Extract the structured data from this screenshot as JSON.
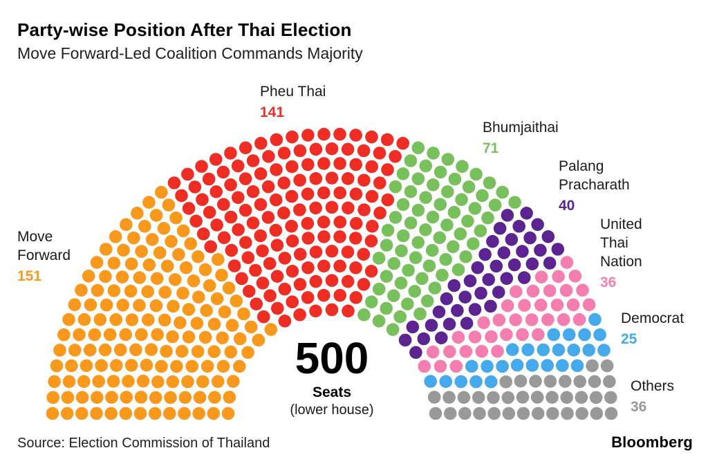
{
  "header": {
    "title": "Party-wise Position After Thai Election",
    "subtitle": "Move Forward-Led Coalition Commands Majority"
  },
  "center": {
    "total": "500",
    "seats_label": "Seats",
    "house_label": "(lower house)"
  },
  "labels": {
    "move_forward": {
      "name": "Move Forward",
      "value": "151"
    },
    "pheu_thai": {
      "name": "Pheu Thai",
      "value": "141"
    },
    "bhumjaithai": {
      "name": "Bhumjaithai",
      "value": "71"
    },
    "palang": {
      "name": "Palang Pracharath",
      "value": "40"
    },
    "utn": {
      "name": "United Thai Nation",
      "value": "36"
    },
    "democrat": {
      "name": "Democrat",
      "value": "25"
    },
    "others": {
      "name": "Others",
      "value": "36"
    }
  },
  "footer": {
    "source": "Source: Election Commission of Thailand",
    "brand": "Bloomberg"
  },
  "chart_data": {
    "type": "pie",
    "chart_style": "parliament-hemicycle-dots",
    "title": "Party-wise Position After Thai Election",
    "subtitle": "Move Forward-Led Coalition Commands Majority",
    "total_seats": 500,
    "rows": 13,
    "center_annotation": {
      "total": 500,
      "unit": "Seats",
      "note": "(lower house)"
    },
    "series": [
      {
        "name": "Move Forward",
        "value": 151,
        "color": "#F8991D"
      },
      {
        "name": "Pheu Thai",
        "value": 141,
        "color": "#EE2E24"
      },
      {
        "name": "Bhumjaithai",
        "value": 71,
        "color": "#77C05B"
      },
      {
        "name": "Palang Pracharath",
        "value": 40,
        "color": "#5C2490"
      },
      {
        "name": "United Thai Nation",
        "value": 36,
        "color": "#F57EB0"
      },
      {
        "name": "Democrat",
        "value": 25,
        "color": "#45A9EC"
      },
      {
        "name": "Others",
        "value": 36,
        "color": "#999999"
      }
    ],
    "source": "Source: Election Commission of Thailand",
    "legend_position": "labels-around-arc"
  }
}
